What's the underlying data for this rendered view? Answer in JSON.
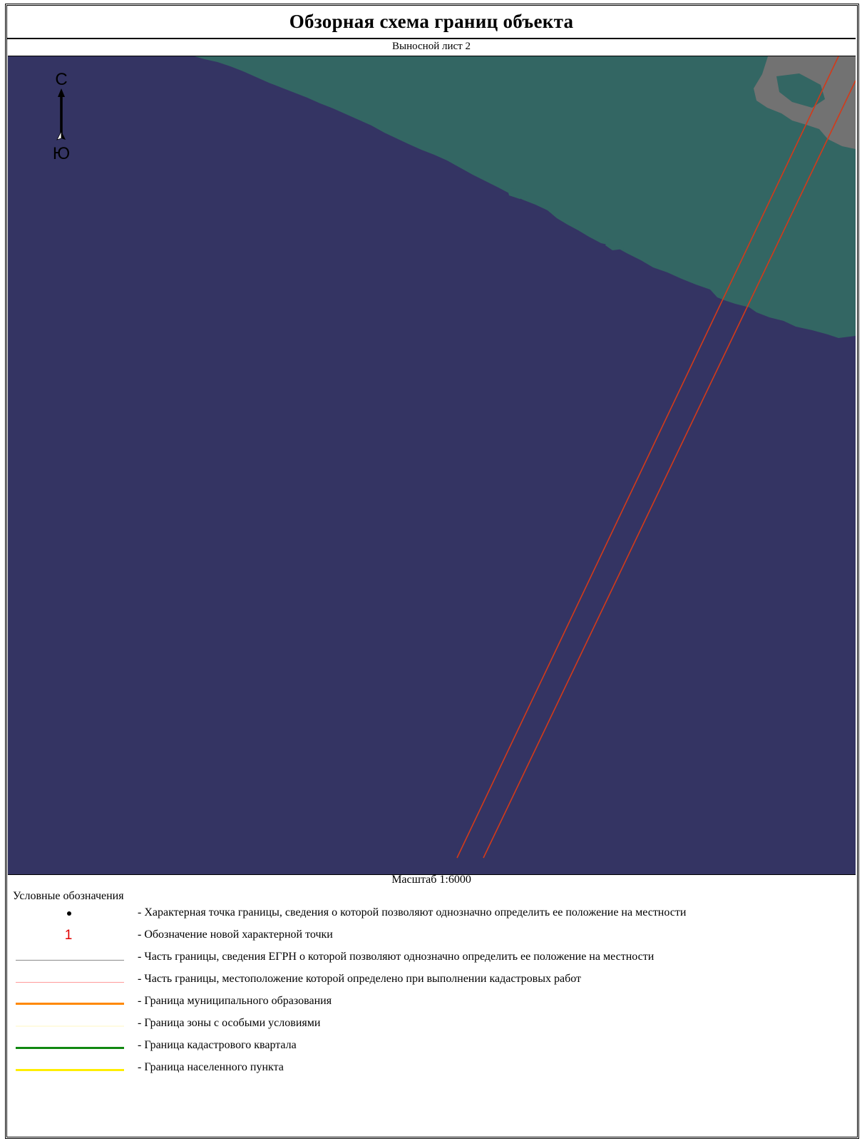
{
  "header": {
    "title": "Обзорная схема границ объекта",
    "sheet": "Выносной лист 2"
  },
  "map": {
    "colors": {
      "sea": "#343463",
      "land": "#336663",
      "built_up": "#727272",
      "boundary": "#d33a1a"
    },
    "compass": {
      "north": "С",
      "south": "Ю",
      "icon": "north-arrow-icon"
    },
    "scale": "Масштаб 1:6000"
  },
  "legend": {
    "title": "Условные обозначения",
    "items": [
      {
        "symbol": "dot",
        "color": "#000000",
        "label": "- Характерная точка границы, сведения о которой позволяют однозначно определить ее положение на местности"
      },
      {
        "symbol": "number",
        "value": "1",
        "color": "#e00000",
        "label": "- Обозначение новой характерной точки"
      },
      {
        "symbol": "line",
        "color": "#8a8a8a",
        "label": "- Часть границы, сведения ЕГРН о которой позволяют однозначно определить ее положение на местности"
      },
      {
        "symbol": "line",
        "color": "#ff9a9a",
        "label": "- Часть границы, местоположение которой определено при выполнении кадастровых работ"
      },
      {
        "symbol": "line",
        "color": "#ff8800",
        "label": "- Граница муниципального образования"
      },
      {
        "symbol": "line",
        "color": "#fffbe0",
        "label": "- Граница зоны с особыми условиями"
      },
      {
        "symbol": "line",
        "color": "#118811",
        "label": "- Граница кадастрового квартала"
      },
      {
        "symbol": "line",
        "color": "#ffee00",
        "label": "- Граница населенного пункта"
      }
    ]
  }
}
